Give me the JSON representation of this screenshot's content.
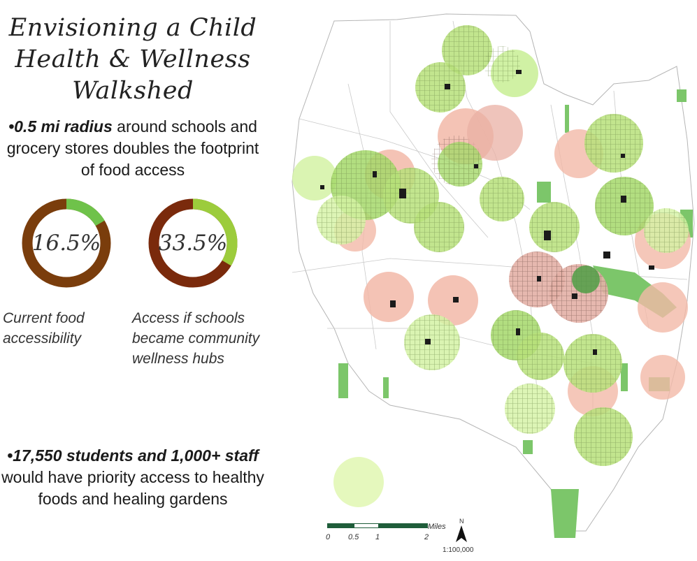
{
  "title": {
    "line1": "Envisioning a Child",
    "line2": "Health & Wellness",
    "line3": "Walkshed"
  },
  "bullet1": {
    "prefix": "•",
    "emphasis": "0.5 mi radius",
    "text": " around schools and grocery stores doubles the footprint of food access"
  },
  "donuts": [
    {
      "value_label": "16.5%",
      "fraction": 0.165,
      "caption_line1": "Current food",
      "caption_line2": "accessibility",
      "ring_color": "#7a3d0c",
      "accent_color": "#6fc24a"
    },
    {
      "value_label": "33.5%",
      "fraction": 0.335,
      "caption_line1": "Access if schools",
      "caption_line2": "became community",
      "caption_line3": "wellness hubs",
      "ring_color": "#7a2a0c",
      "accent_color": "#9ccc3c"
    }
  ],
  "bullet2": {
    "prefix": "•",
    "emphasis": "17,550 students and 1,000+ staff",
    "text": " would have priority access to healthy foods and healing gardens"
  },
  "map": {
    "scale_ticks": [
      "0",
      "0.5",
      "1",
      "2"
    ],
    "scale_unit": "Miles",
    "scale_ratio": "1:100,000",
    "north_label": "N",
    "colors": {
      "green_buffer": "#b7e07a",
      "pink_buffer": "#f2b9a8",
      "park": "#7cc66a",
      "street": "#9a9a9a"
    }
  }
}
